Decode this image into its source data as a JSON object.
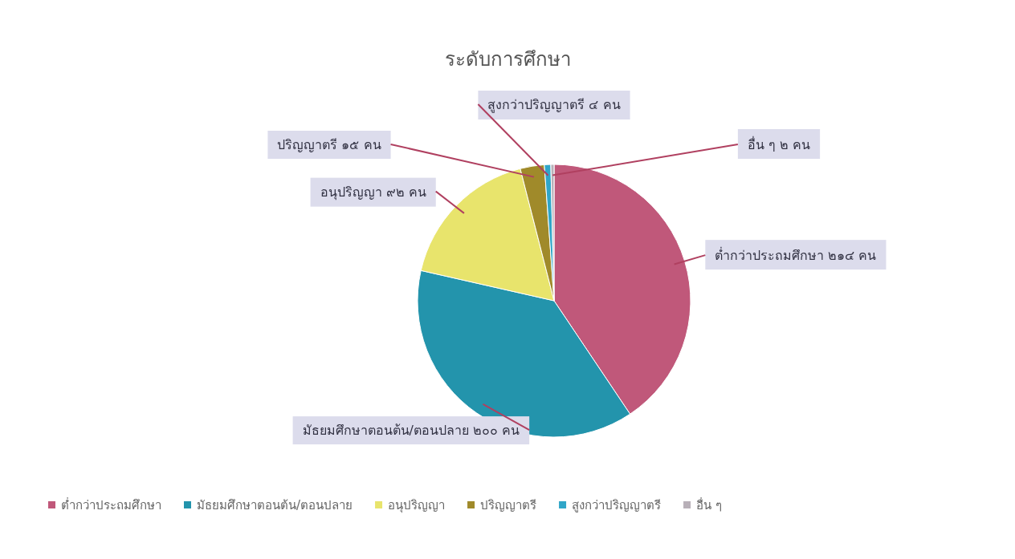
{
  "chart_data": {
    "type": "pie",
    "title": "ระดับการศึกษา",
    "categories": [
      "ต่ำกว่าประถมศึกษา",
      "มัธยมศึกษาตอนต้น/ตอนปลาย",
      "อนุปริญญา",
      "ปริญญาตรี",
      "สูงกว่าปริญญาตรี",
      "อื่น ๆ"
    ],
    "values": [
      214,
      200,
      92,
      15,
      4,
      2
    ],
    "value_labels": [
      "ต่ำกว่าประถมศึกษา ๒๑๔ คน",
      "มัธยมศึกษาตอนต้น/ตอนปลาย ๒๐๐ คน",
      "อนุปริญญา ๙๒ คน",
      "ปริญญาตรี ๑๕ คน",
      "สูงกว่าปริญญาตรี ๔ คน",
      "อื่น ๆ ๒ คน"
    ],
    "colors": [
      "#c0587a",
      "#2394ac",
      "#e8e46c",
      "#a08a2a",
      "#30a6c8",
      "#b8b0b8"
    ],
    "legend": "bottom"
  }
}
